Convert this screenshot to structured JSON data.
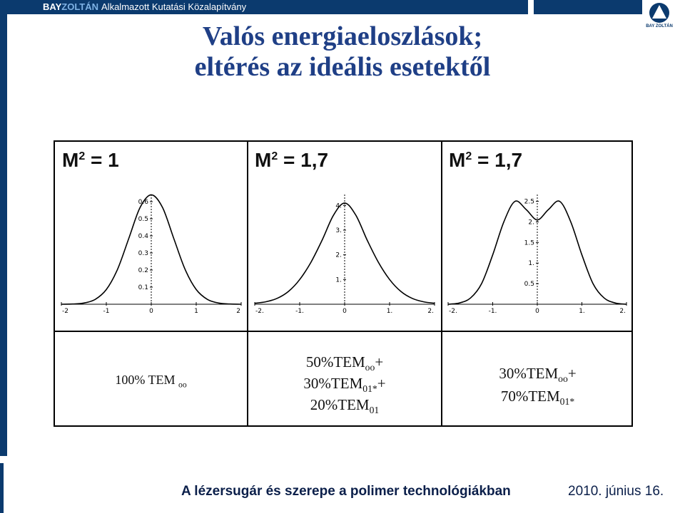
{
  "header": {
    "brand_bay": "BAY",
    "brand_zoltan": "ZOLTÁN",
    "brand_rest": "Alkalmazott Kutatási Közalapítvány",
    "logo_text": "BAY ZOLTÁN"
  },
  "title": {
    "line1": "Valós energiaeloszlások;",
    "line2": "eltérés az ideális esetektől"
  },
  "footer": {
    "text": "A lézersugár és szerepe a polimer technológiákban",
    "date": "2010. június 16."
  },
  "colors": {
    "brand_blue": "#0b3a6e",
    "title_blue": "#1f3f86"
  },
  "chart_data": [
    {
      "type": "line",
      "label_base": "M",
      "label_sup": "2",
      "label_value": "= 1",
      "x_ticks": [
        "-2",
        "-1",
        "0",
        "1",
        "2"
      ],
      "y_ticks": [
        "0.1",
        "0.2",
        "0.3",
        "0.4",
        "0.5",
        "0.6"
      ],
      "xlim": [
        -2,
        2
      ],
      "ylim": [
        0,
        0.65
      ],
      "x": [
        -2,
        -1.75,
        -1.5,
        -1.25,
        -1,
        -0.75,
        -0.5,
        -0.25,
        0,
        0.25,
        0.5,
        0.75,
        1,
        1.25,
        1.5,
        1.75,
        2
      ],
      "y": [
        0.0002,
        0.0014,
        0.007,
        0.028,
        0.086,
        0.205,
        0.385,
        0.566,
        0.64,
        0.566,
        0.385,
        0.205,
        0.086,
        0.028,
        0.007,
        0.0014,
        0.0002
      ],
      "composition": "100% TEM",
      "composition_sub": "oo"
    },
    {
      "type": "line",
      "label_base": "M",
      "label_sup": "2",
      "label_value": "= 1,7",
      "x_ticks": [
        "-2.",
        "-1.",
        "0",
        "1.",
        "2."
      ],
      "y_ticks": [
        "1.",
        "2.",
        "3.",
        "4."
      ],
      "xlim": [
        -2,
        2
      ],
      "ylim": [
        0,
        4.5
      ],
      "x": [
        -2,
        -1.75,
        -1.5,
        -1.25,
        -1,
        -0.75,
        -0.5,
        -0.25,
        0,
        0.25,
        0.5,
        0.75,
        1,
        1.25,
        1.5,
        1.75,
        2
      ],
      "y": [
        0.04,
        0.1,
        0.24,
        0.52,
        1.0,
        1.7,
        2.6,
        3.6,
        4.1,
        3.6,
        2.6,
        1.7,
        1.0,
        0.52,
        0.24,
        0.1,
        0.04
      ],
      "composition_lines": [
        {
          "pct": "50%TEM",
          "sub": "oo",
          "suffix": "+"
        },
        {
          "pct": "30%TEM",
          "sub": "01*",
          "suffix": "+"
        },
        {
          "pct": "20%TEM",
          "sub": "01",
          "suffix": ""
        }
      ]
    },
    {
      "type": "line",
      "label_base": "M",
      "label_sup": "2",
      "label_value": "= 1,7",
      "x_ticks": [
        "-2.",
        "-1.",
        "0",
        "1.",
        "2."
      ],
      "y_ticks": [
        "0.5",
        "1.",
        "1.5",
        "2.",
        "2.5"
      ],
      "xlim": [
        -2,
        2
      ],
      "ylim": [
        0,
        2.7
      ],
      "x": [
        -2,
        -1.75,
        -1.5,
        -1.25,
        -1,
        -0.75,
        -0.5,
        -0.25,
        0,
        0.25,
        0.5,
        0.75,
        1,
        1.25,
        1.5,
        1.75,
        2
      ],
      "y": [
        0.0,
        0.03,
        0.15,
        0.5,
        1.2,
        2.0,
        2.5,
        2.3,
        2.05,
        2.3,
        2.5,
        2.0,
        1.2,
        0.5,
        0.15,
        0.03,
        0.0
      ],
      "composition_lines": [
        {
          "pct": "30%TEM",
          "sub": "oo",
          "suffix": "+"
        },
        {
          "pct": "70%TEM",
          "sub": "01*",
          "suffix": ""
        }
      ]
    }
  ]
}
